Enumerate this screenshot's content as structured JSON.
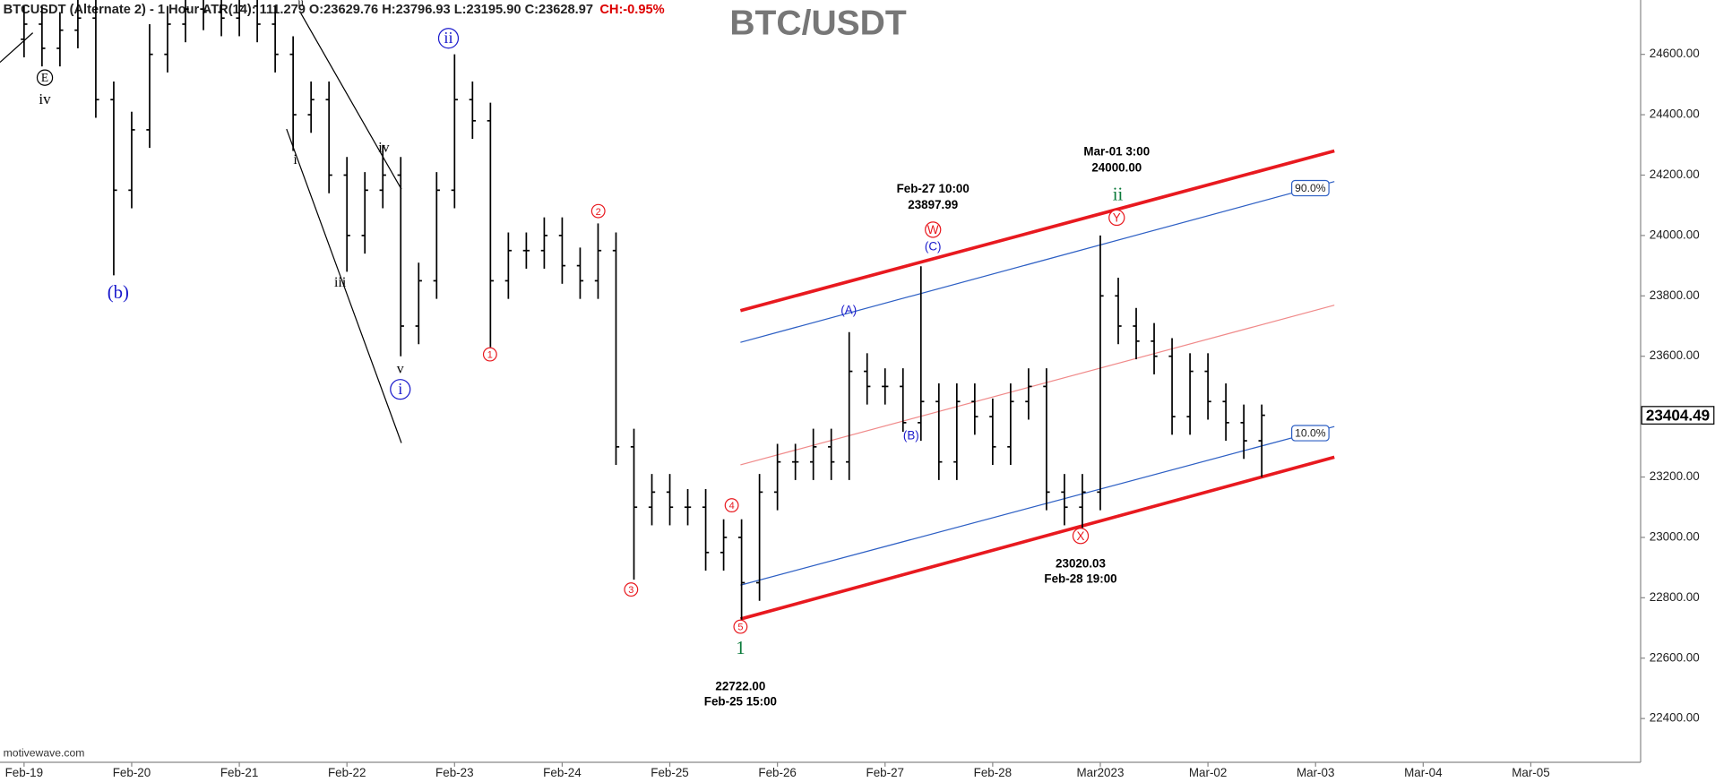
{
  "chart_data": {
    "type": "ohlc",
    "title": "BTC/USDT",
    "header": "BTCUSDT (Alternate 2) - 1 Hour  ATR(14): 111.279  O:23629.76  H:23796.93  L:23195.90  C:23628.97",
    "header_change": "CH:-0.95%",
    "source": "motivewave.com",
    "categories": [
      "Feb-19",
      null,
      null,
      null,
      null,
      null,
      "Feb-20",
      null,
      null,
      null,
      null,
      null,
      "Feb-21",
      null,
      null,
      null,
      null,
      null,
      "Feb-22",
      null,
      null,
      null,
      null,
      null,
      "Feb-23",
      null,
      null,
      null,
      null,
      null,
      "Feb-24",
      null,
      null,
      null,
      null,
      null,
      "Feb-25",
      null,
      null,
      null,
      null,
      null,
      "Feb-26",
      null,
      null,
      null,
      null,
      null,
      "Feb-27",
      null,
      null,
      null,
      null,
      null,
      "Feb-28",
      null,
      null,
      null,
      null,
      null,
      "Mar2023",
      null,
      null,
      null,
      null,
      null,
      "Mar-02",
      null,
      null,
      null,
      null,
      null,
      "Mar-03",
      null,
      null,
      null,
      null,
      null,
      "Mar-04",
      null,
      null,
      null,
      null,
      null,
      "Mar-05",
      null,
      null,
      null,
      null,
      null
    ],
    "open": [
      24650,
      24700,
      24620,
      24680,
      24720,
      24450,
      24150,
      24350,
      24600,
      24700,
      24750,
      24740,
      24720,
      24760,
      24700,
      24600,
      24400,
      24450,
      24200,
      24000,
      24150,
      24200,
      23700,
      23850,
      24150,
      24450,
      24380,
      23850,
      23950,
      23950,
      24000,
      23900,
      23850,
      23950,
      23300,
      23100,
      23150,
      23100,
      23100,
      22950,
      23000,
      22850,
      23150,
      23250,
      23250,
      23300,
      23250,
      23550,
      23500,
      23500,
      23380,
      23450,
      23250,
      23450,
      23400,
      23300,
      23450,
      23500,
      23150,
      23100,
      23150,
      23800,
      23700,
      23650,
      23600,
      23400,
      23550,
      23450,
      23380,
      23320,
      null,
      null,
      null,
      null,
      null,
      null,
      null,
      null,
      null,
      null,
      null,
      null,
      null,
      null,
      null,
      null,
      null,
      null,
      null,
      null
    ],
    "high": [
      24760,
      24760,
      24740,
      24780,
      24780,
      24510,
      24410,
      24700,
      24760,
      24780,
      24780,
      24780,
      24780,
      24780,
      24760,
      24660,
      24510,
      24510,
      24260,
      24210,
      24300,
      24260,
      23910,
      24210,
      24600,
      24510,
      24440,
      24010,
      24010,
      24060,
      24060,
      23960,
      24040,
      24010,
      23360,
      23210,
      23210,
      23160,
      23160,
      23060,
      23060,
      23210,
      23310,
      23310,
      23360,
      23360,
      23680,
      23610,
      23560,
      23560,
      23897.99,
      23510,
      23510,
      23510,
      23460,
      23510,
      23560,
      23560,
      23210,
      23210,
      24000,
      23860,
      23760,
      23710,
      23660,
      23610,
      23610,
      23510,
      23440,
      23440,
      null,
      null,
      null,
      null,
      null,
      null,
      null,
      null,
      null,
      null,
      null,
      null,
      null,
      null,
      null,
      null,
      null,
      null,
      null,
      null
    ],
    "low": [
      24590,
      24560,
      24560,
      24620,
      24390,
      23868,
      24090,
      24290,
      24540,
      24640,
      24680,
      24660,
      24660,
      24640,
      24540,
      24280,
      24340,
      24140,
      23880,
      23940,
      24090,
      23600,
      23640,
      23790,
      24090,
      24320,
      23630,
      23790,
      23890,
      23890,
      23840,
      23790,
      23790,
      23240,
      22860,
      23040,
      23040,
      23040,
      22890,
      22890,
      22722,
      22790,
      23090,
      23190,
      23190,
      23190,
      23190,
      23440,
      23440,
      23350,
      23320,
      23190,
      23190,
      23340,
      23240,
      23240,
      23390,
      23090,
      23040,
      23020.03,
      23090,
      23640,
      23590,
      23540,
      23340,
      23340,
      23390,
      23320,
      23260,
      23200,
      null,
      null,
      null,
      null,
      null,
      null,
      null,
      null,
      null,
      null,
      null,
      null,
      null,
      null,
      null,
      null,
      null,
      null,
      null,
      null
    ],
    "close": [
      24700,
      24620,
      24680,
      24720,
      24450,
      24150,
      24350,
      24600,
      24700,
      24750,
      24740,
      24720,
      24760,
      24700,
      24600,
      24400,
      24450,
      24200,
      24000,
      24150,
      24200,
      23700,
      23850,
      24150,
      24450,
      24380,
      23850,
      23950,
      23950,
      24000,
      23900,
      23850,
      23950,
      23300,
      23100,
      23150,
      23100,
      23100,
      22950,
      23000,
      22850,
      23150,
      23250,
      23250,
      23300,
      23250,
      23550,
      23500,
      23500,
      23380,
      23450,
      23250,
      23450,
      23400,
      23300,
      23450,
      23500,
      23150,
      23100,
      23150,
      23800,
      23700,
      23650,
      23600,
      23400,
      23550,
      23450,
      23380,
      23320,
      23404.49,
      null,
      null,
      null,
      null,
      null,
      null,
      null,
      null,
      null,
      null,
      null,
      null,
      null,
      null,
      null,
      null,
      null,
      null,
      null,
      null
    ],
    "color": "#000000",
    "ylim": [
      22255,
      24780
    ],
    "yticks": [
      {
        "value": 22400,
        "label": "22400.00"
      },
      {
        "value": 22600,
        "label": "22600.00"
      },
      {
        "value": 22800,
        "label": "22800.00"
      },
      {
        "value": 23000,
        "label": "23000.00"
      },
      {
        "value": 23200,
        "label": "23200.00"
      },
      {
        "value": 23400,
        "label": "23400.00"
      },
      {
        "value": 23600,
        "label": "23600.00"
      },
      {
        "value": 23800,
        "label": "23800.00"
      },
      {
        "value": 24000,
        "label": "24000.00"
      },
      {
        "value": 24200,
        "label": "24200.00"
      },
      {
        "value": 24400,
        "label": "24400.00"
      },
      {
        "value": 24600,
        "label": "24600.00"
      }
    ],
    "annotations": [
      "E",
      "iv",
      "(b)",
      "ii",
      "i",
      "iii",
      "iv",
      "v",
      "i",
      "ii",
      "1",
      "2",
      "3",
      "4",
      "5",
      "1",
      "(A)",
      "(B)",
      "(C)",
      "W",
      "X",
      "Y",
      "ii",
      "Feb-27 10:00",
      "23897.99",
      "Mar-01 3:00",
      "24000.00",
      "23020.03",
      "Feb-28 19:00",
      "22722.00",
      "Feb-25 15:00"
    ],
    "channel_labels": [
      "90.0%",
      "10.0%"
    ]
  }
}
